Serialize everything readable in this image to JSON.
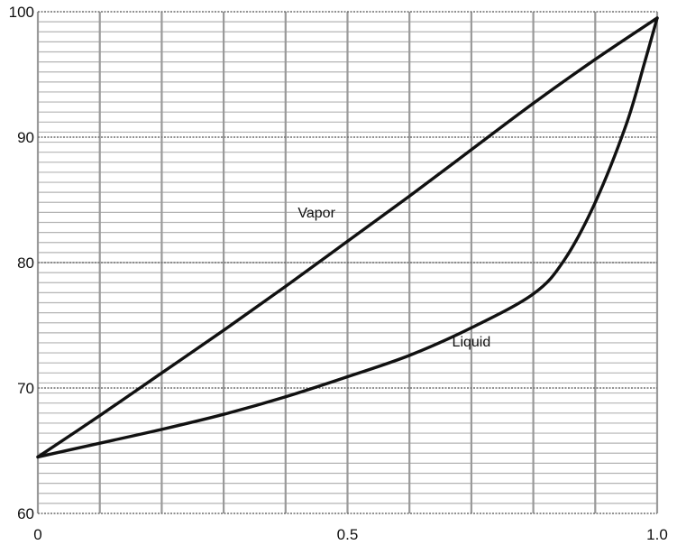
{
  "chart_data": {
    "type": "line",
    "title": "",
    "xlabel": "",
    "ylabel": "",
    "xlim": [
      0,
      1
    ],
    "ylim": [
      60,
      100
    ],
    "x_ticks": [
      {
        "value": 0,
        "label": "0"
      },
      {
        "value": 0.5,
        "label": "0.5"
      },
      {
        "value": 1,
        "label": "1.0"
      }
    ],
    "y_ticks": [
      {
        "value": 60,
        "label": "60"
      },
      {
        "value": 70,
        "label": "70"
      },
      {
        "value": 80,
        "label": "80"
      },
      {
        "value": 90,
        "label": "90"
      },
      {
        "value": 100,
        "label": "100"
      }
    ],
    "grid": {
      "x_minor_step": 0.1,
      "y_minor_step": 0.8
    },
    "series": [
      {
        "name": "Vapor",
        "x": [
          0,
          0.1,
          0.2,
          0.3,
          0.4,
          0.5,
          0.6,
          0.7,
          0.8,
          0.9,
          1.0
        ],
        "y": [
          64.5,
          67.8,
          71.2,
          74.6,
          78.1,
          81.7,
          85.3,
          89.0,
          92.7,
          96.2,
          99.5
        ]
      },
      {
        "name": "Liquid",
        "x": [
          0,
          0.1,
          0.2,
          0.3,
          0.4,
          0.5,
          0.6,
          0.7,
          0.8,
          0.85,
          0.9,
          0.95,
          0.98,
          1.0
        ],
        "y": [
          64.5,
          65.6,
          66.7,
          67.9,
          69.3,
          70.9,
          72.6,
          74.8,
          77.5,
          80.2,
          84.8,
          91.0,
          96.0,
          99.5
        ]
      }
    ],
    "annotations": [
      {
        "text": "Vapor",
        "x": 0.45,
        "y": 83.6,
        "series": "Vapor"
      },
      {
        "text": "Liquid",
        "x": 0.7,
        "y": 73.3,
        "series": "Liquid"
      }
    ],
    "colors": {
      "line": "#111111",
      "grid_major": "#9a9a9a",
      "grid_minor": "#b4b4b4"
    }
  }
}
